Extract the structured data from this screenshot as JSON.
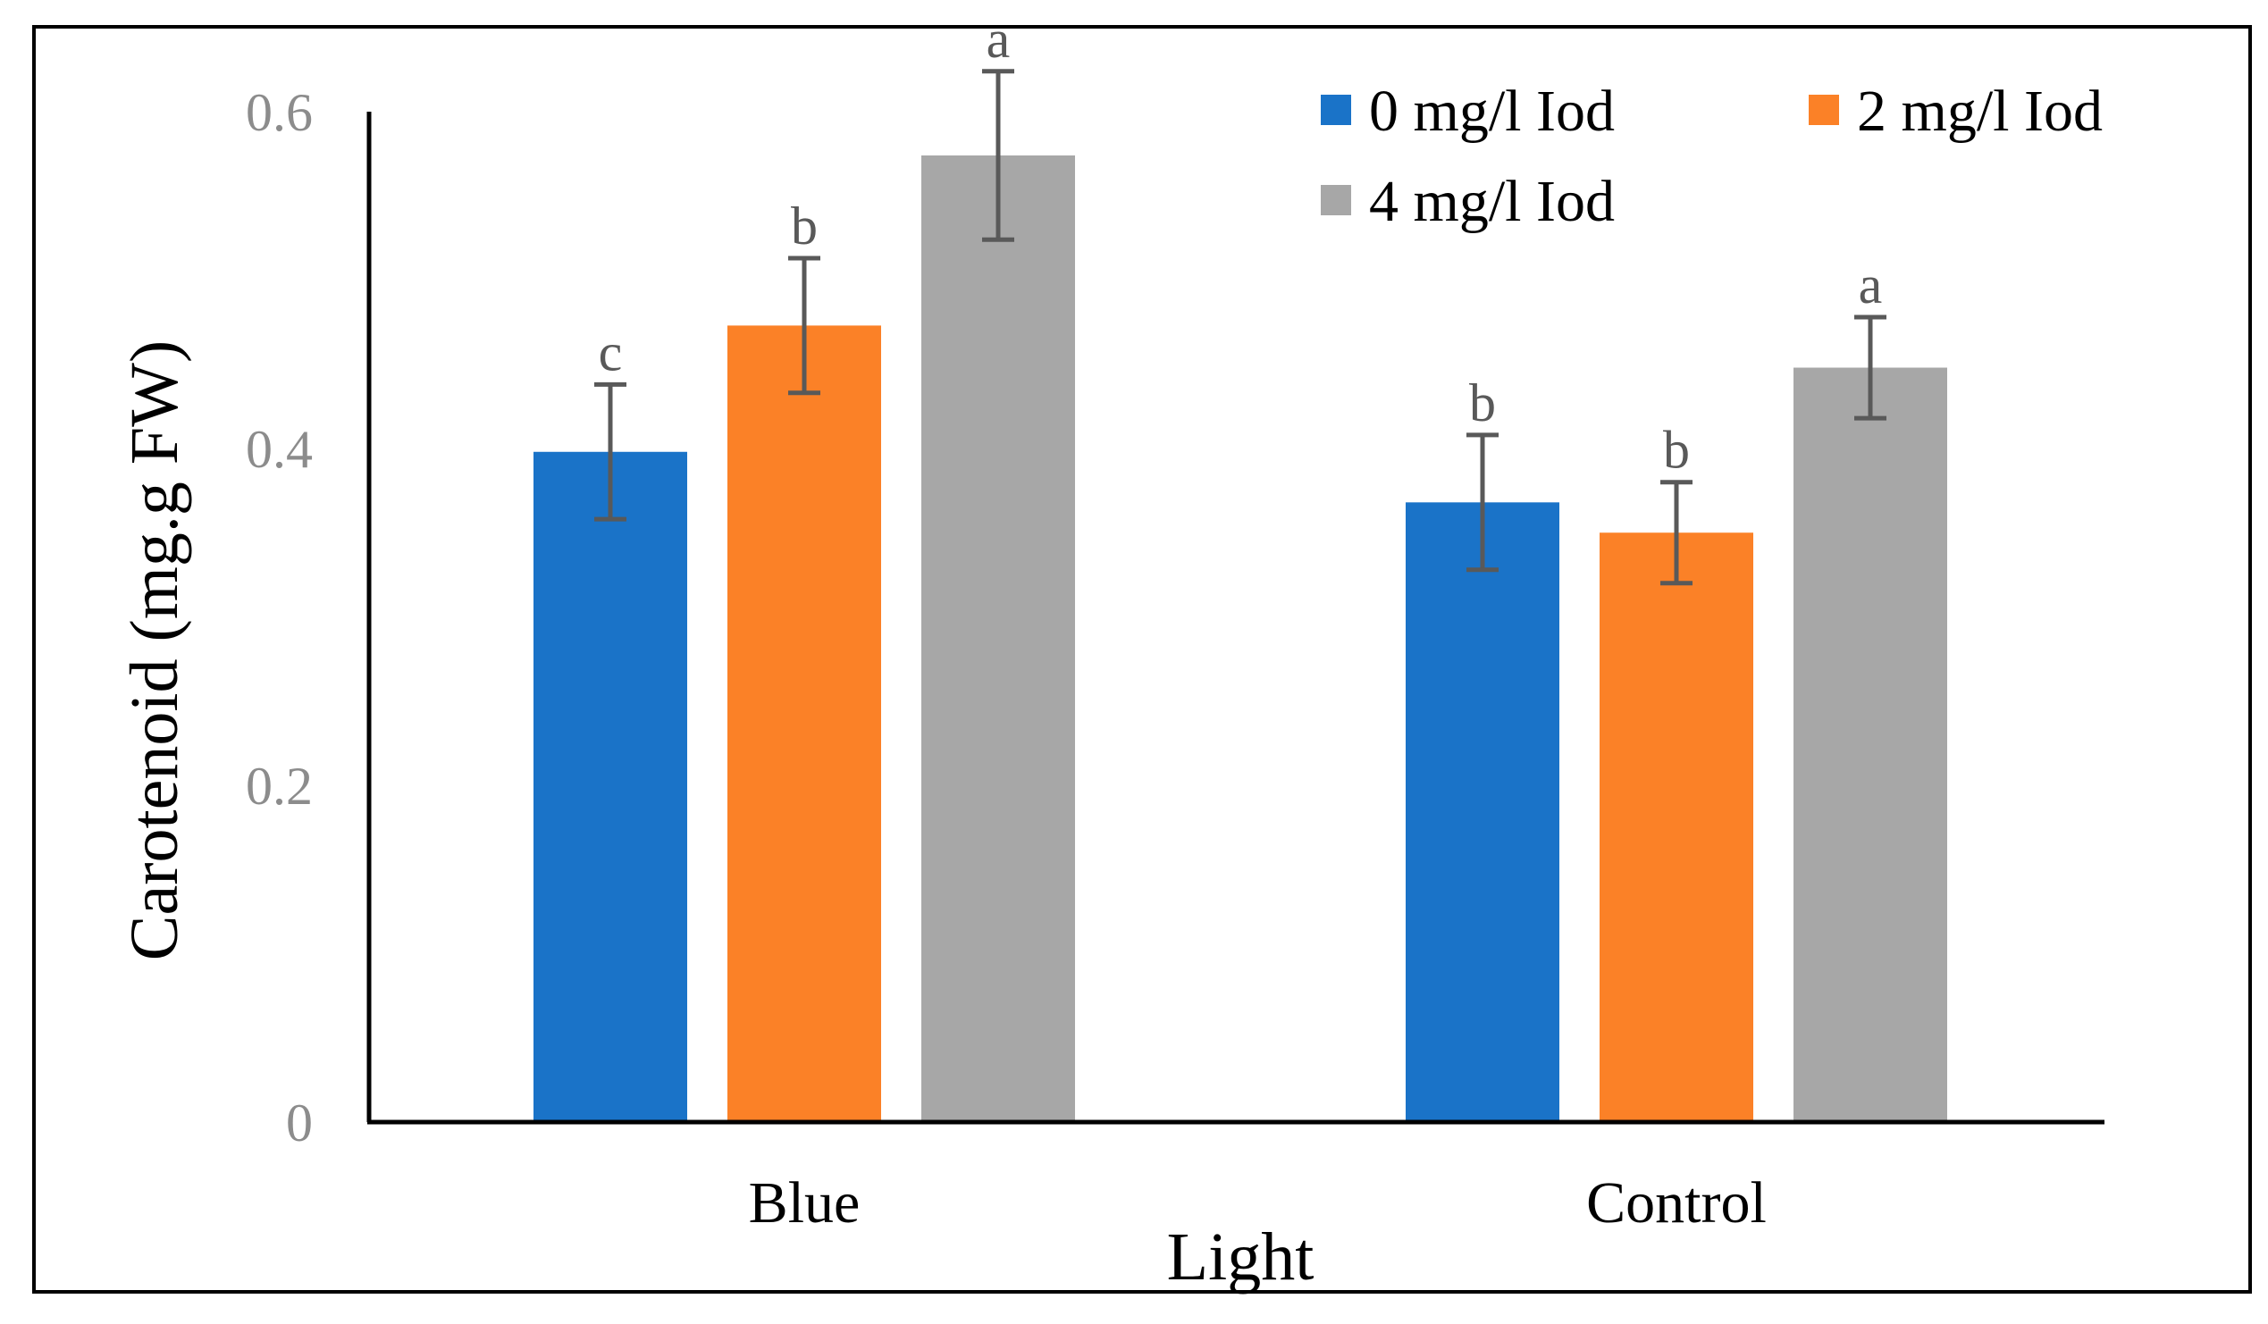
{
  "chart_data": {
    "type": "bar",
    "title": "",
    "xlabel": "Light",
    "ylabel": "Carotenoid (mg.g FW)",
    "ylim": [
      0,
      0.6
    ],
    "yticks": [
      {
        "value": 0,
        "label": "0"
      },
      {
        "value": 0.2,
        "label": "0.2"
      },
      {
        "value": 0.4,
        "label": "0.4"
      },
      {
        "value": 0.6,
        "label": "0.6"
      }
    ],
    "categories": [
      "Blue",
      "Control"
    ],
    "legend_position": "top-right",
    "series": [
      {
        "name": "0 mg/l Iod",
        "color": "#1a73c8",
        "values": [
          0.398,
          0.368
        ],
        "errors": [
          0.04,
          0.04
        ],
        "letters": [
          "c",
          "b"
        ]
      },
      {
        "name": "2 mg/l Iod",
        "color": "#fb8127",
        "values": [
          0.473,
          0.35
        ],
        "errors": [
          0.04,
          0.03
        ],
        "letters": [
          "b",
          "b"
        ]
      },
      {
        "name": "4 mg/l Iod",
        "color": "#a7a7a7",
        "values": [
          0.574,
          0.448
        ],
        "errors": [
          0.05,
          0.03
        ],
        "letters": [
          "a",
          "a"
        ]
      }
    ],
    "error_bar_color": "#595959"
  }
}
